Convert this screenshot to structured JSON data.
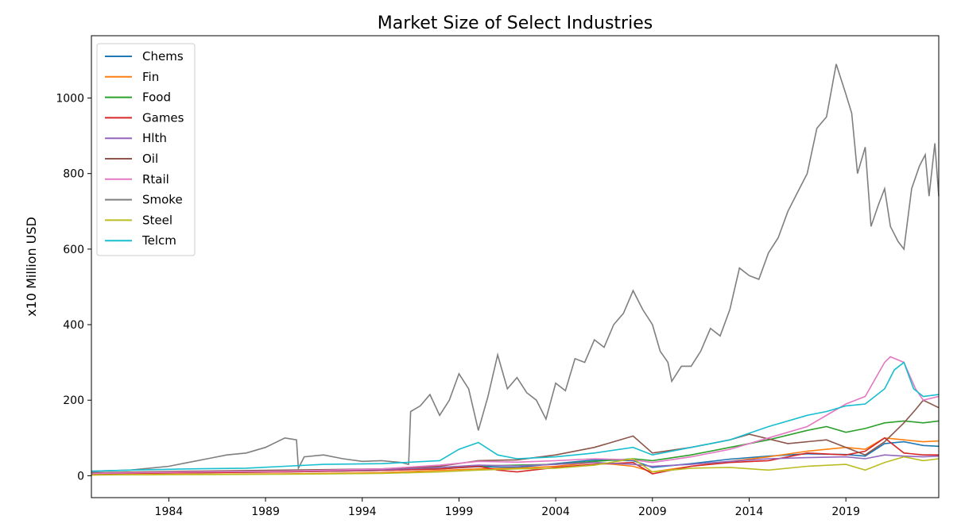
{
  "chart_data": {
    "type": "line",
    "title": "Market Size of Select Industries",
    "xlabel": "",
    "ylabel": "x10 Million USD",
    "xlim": [
      1980.0,
      2023.8
    ],
    "ylim": [
      -58,
      1165
    ],
    "x_ticks": [
      1984,
      1989,
      1994,
      1999,
      2004,
      2009,
      2014,
      2019
    ],
    "y_ticks": [
      0,
      200,
      400,
      600,
      800,
      1000
    ],
    "grid": false,
    "legend_position": "top-left",
    "series": [
      {
        "name": "Chems",
        "color": "#1f77b4",
        "points": [
          [
            1980.0,
            8
          ],
          [
            1985,
            10
          ],
          [
            1990,
            11
          ],
          [
            1995,
            14
          ],
          [
            1998,
            18
          ],
          [
            2000,
            24
          ],
          [
            2002,
            22
          ],
          [
            2004,
            32
          ],
          [
            2006,
            42
          ],
          [
            2008,
            40
          ],
          [
            2009,
            22
          ],
          [
            2011,
            32
          ],
          [
            2013,
            44
          ],
          [
            2015,
            52
          ],
          [
            2017,
            58
          ],
          [
            2019,
            56
          ],
          [
            2020,
            52
          ],
          [
            2021,
            85
          ],
          [
            2022,
            90
          ],
          [
            2023,
            80
          ],
          [
            2023.8,
            78
          ]
        ]
      },
      {
        "name": "Fin",
        "color": "#ff7f0e",
        "points": [
          [
            1980.0,
            2
          ],
          [
            1985,
            4
          ],
          [
            1990,
            5
          ],
          [
            1995,
            8
          ],
          [
            1998,
            14
          ],
          [
            2000,
            18
          ],
          [
            2002,
            20
          ],
          [
            2004,
            25
          ],
          [
            2006,
            35
          ],
          [
            2008,
            25
          ],
          [
            2009,
            10
          ],
          [
            2011,
            25
          ],
          [
            2013,
            38
          ],
          [
            2015,
            50
          ],
          [
            2017,
            65
          ],
          [
            2019,
            75
          ],
          [
            2020,
            70
          ],
          [
            2021,
            100
          ],
          [
            2022,
            95
          ],
          [
            2023,
            90
          ],
          [
            2023.8,
            92
          ]
        ]
      },
      {
        "name": "Food",
        "color": "#2ca02c",
        "points": [
          [
            1980.0,
            6
          ],
          [
            1985,
            8
          ],
          [
            1990,
            10
          ],
          [
            1995,
            14
          ],
          [
            1998,
            22
          ],
          [
            2000,
            26
          ],
          [
            2002,
            28
          ],
          [
            2004,
            30
          ],
          [
            2006,
            38
          ],
          [
            2008,
            45
          ],
          [
            2009,
            40
          ],
          [
            2011,
            55
          ],
          [
            2013,
            75
          ],
          [
            2015,
            95
          ],
          [
            2017,
            120
          ],
          [
            2018,
            130
          ],
          [
            2019,
            115
          ],
          [
            2020,
            125
          ],
          [
            2021,
            140
          ],
          [
            2022,
            145
          ],
          [
            2023,
            140
          ],
          [
            2023.8,
            145
          ]
        ]
      },
      {
        "name": "Games",
        "color": "#d62728",
        "points": [
          [
            1980.0,
            5
          ],
          [
            1985,
            8
          ],
          [
            1990,
            10
          ],
          [
            1995,
            14
          ],
          [
            1998,
            18
          ],
          [
            2000,
            25
          ],
          [
            2001,
            15
          ],
          [
            2002,
            10
          ],
          [
            2004,
            22
          ],
          [
            2006,
            30
          ],
          [
            2008,
            35
          ],
          [
            2009,
            5
          ],
          [
            2011,
            25
          ],
          [
            2013,
            35
          ],
          [
            2015,
            40
          ],
          [
            2017,
            60
          ],
          [
            2019,
            55
          ],
          [
            2020,
            65
          ],
          [
            2021,
            100
          ],
          [
            2022,
            60
          ],
          [
            2023,
            55
          ],
          [
            2023.8,
            55
          ]
        ]
      },
      {
        "name": "Hlth",
        "color": "#9467bd",
        "points": [
          [
            1980.0,
            8
          ],
          [
            1985,
            10
          ],
          [
            1990,
            12
          ],
          [
            1995,
            16
          ],
          [
            1998,
            22
          ],
          [
            2000,
            28
          ],
          [
            2002,
            26
          ],
          [
            2004,
            30
          ],
          [
            2006,
            35
          ],
          [
            2008,
            30
          ],
          [
            2009,
            25
          ],
          [
            2011,
            30
          ],
          [
            2013,
            38
          ],
          [
            2015,
            45
          ],
          [
            2017,
            48
          ],
          [
            2019,
            50
          ],
          [
            2020,
            45
          ],
          [
            2021,
            55
          ],
          [
            2022,
            52
          ],
          [
            2023,
            50
          ],
          [
            2023.8,
            52
          ]
        ]
      },
      {
        "name": "Oil",
        "color": "#8c564b",
        "points": [
          [
            1980.0,
            8
          ],
          [
            1985,
            12
          ],
          [
            1990,
            15
          ],
          [
            1995,
            18
          ],
          [
            1998,
            25
          ],
          [
            2000,
            40
          ],
          [
            2002,
            42
          ],
          [
            2004,
            55
          ],
          [
            2006,
            75
          ],
          [
            2008,
            105
          ],
          [
            2009,
            60
          ],
          [
            2011,
            75
          ],
          [
            2013,
            95
          ],
          [
            2014,
            110
          ],
          [
            2016,
            85
          ],
          [
            2018,
            95
          ],
          [
            2020,
            55
          ],
          [
            2021,
            90
          ],
          [
            2022,
            140
          ],
          [
            2022.6,
            175
          ],
          [
            2023,
            200
          ],
          [
            2023.8,
            180
          ]
        ]
      },
      {
        "name": "Rtail",
        "color": "#e377c2",
        "points": [
          [
            1980.0,
            6
          ],
          [
            1985,
            10
          ],
          [
            1990,
            12
          ],
          [
            1995,
            18
          ],
          [
            1998,
            28
          ],
          [
            2000,
            38
          ],
          [
            2002,
            36
          ],
          [
            2004,
            40
          ],
          [
            2006,
            45
          ],
          [
            2008,
            42
          ],
          [
            2009,
            35
          ],
          [
            2011,
            50
          ],
          [
            2013,
            70
          ],
          [
            2015,
            100
          ],
          [
            2017,
            130
          ],
          [
            2019,
            190
          ],
          [
            2020,
            210
          ],
          [
            2021,
            300
          ],
          [
            2021.3,
            315
          ],
          [
            2022,
            300
          ],
          [
            2022.6,
            230
          ],
          [
            2023,
            200
          ],
          [
            2023.8,
            210
          ]
        ]
      },
      {
        "name": "Smoke",
        "color": "#7f7f7f",
        "points": [
          [
            1980.0,
            12
          ],
          [
            1982,
            15
          ],
          [
            1983,
            20
          ],
          [
            1984,
            25
          ],
          [
            1985,
            35
          ],
          [
            1986,
            45
          ],
          [
            1987,
            55
          ],
          [
            1988,
            60
          ],
          [
            1989,
            75
          ],
          [
            1990,
            100
          ],
          [
            1990.6,
            95
          ],
          [
            1990.7,
            20
          ],
          [
            1991,
            50
          ],
          [
            1992,
            55
          ],
          [
            1993,
            45
          ],
          [
            1994,
            38
          ],
          [
            1995,
            40
          ],
          [
            1996,
            35
          ],
          [
            1996.4,
            30
          ],
          [
            1996.5,
            170
          ],
          [
            1997,
            185
          ],
          [
            1997.5,
            215
          ],
          [
            1998,
            160
          ],
          [
            1998.5,
            200
          ],
          [
            1999,
            270
          ],
          [
            1999.5,
            230
          ],
          [
            2000,
            120
          ],
          [
            2000.5,
            210
          ],
          [
            2001,
            320
          ],
          [
            2001.5,
            230
          ],
          [
            2002,
            260
          ],
          [
            2002.5,
            220
          ],
          [
            2003,
            200
          ],
          [
            2003.5,
            150
          ],
          [
            2004,
            245
          ],
          [
            2004.5,
            225
          ],
          [
            2005,
            310
          ],
          [
            2005.5,
            300
          ],
          [
            2006,
            360
          ],
          [
            2006.5,
            340
          ],
          [
            2007,
            400
          ],
          [
            2007.5,
            430
          ],
          [
            2008,
            490
          ],
          [
            2008.5,
            440
          ],
          [
            2009,
            400
          ],
          [
            2009.4,
            330
          ],
          [
            2009.8,
            300
          ],
          [
            2010,
            250
          ],
          [
            2010.5,
            290
          ],
          [
            2011,
            290
          ],
          [
            2011.5,
            330
          ],
          [
            2012,
            390
          ],
          [
            2012.5,
            370
          ],
          [
            2013,
            440
          ],
          [
            2013.5,
            550
          ],
          [
            2014,
            530
          ],
          [
            2014.5,
            520
          ],
          [
            2015,
            590
          ],
          [
            2015.5,
            630
          ],
          [
            2016,
            700
          ],
          [
            2016.5,
            750
          ],
          [
            2017,
            800
          ],
          [
            2017.5,
            920
          ],
          [
            2018,
            950
          ],
          [
            2018.5,
            1090
          ],
          [
            2019,
            1010
          ],
          [
            2019.3,
            960
          ],
          [
            2019.6,
            800
          ],
          [
            2020,
            870
          ],
          [
            2020.3,
            660
          ],
          [
            2020.7,
            720
          ],
          [
            2021,
            760
          ],
          [
            2021.3,
            660
          ],
          [
            2021.7,
            620
          ],
          [
            2022,
            600
          ],
          [
            2022.4,
            760
          ],
          [
            2022.8,
            820
          ],
          [
            2023.1,
            850
          ],
          [
            2023.3,
            740
          ],
          [
            2023.6,
            880
          ],
          [
            2023.8,
            740
          ]
        ]
      },
      {
        "name": "Steel",
        "color": "#bcbd22",
        "points": [
          [
            1980.0,
            2
          ],
          [
            1985,
            3
          ],
          [
            1990,
            4
          ],
          [
            1995,
            6
          ],
          [
            1998,
            10
          ],
          [
            2000,
            15
          ],
          [
            2002,
            18
          ],
          [
            2004,
            20
          ],
          [
            2006,
            28
          ],
          [
            2008,
            45
          ],
          [
            2009,
            10
          ],
          [
            2011,
            20
          ],
          [
            2013,
            22
          ],
          [
            2015,
            15
          ],
          [
            2017,
            25
          ],
          [
            2019,
            30
          ],
          [
            2020,
            15
          ],
          [
            2021,
            35
          ],
          [
            2022,
            50
          ],
          [
            2023,
            40
          ],
          [
            2023.8,
            45
          ]
        ]
      },
      {
        "name": "Telcm",
        "color": "#17becf",
        "points": [
          [
            1980.0,
            12
          ],
          [
            1982,
            15
          ],
          [
            1985,
            18
          ],
          [
            1988,
            20
          ],
          [
            1990,
            25
          ],
          [
            1992,
            30
          ],
          [
            1995,
            32
          ],
          [
            1998,
            40
          ],
          [
            1999,
            70
          ],
          [
            2000,
            88
          ],
          [
            2001,
            55
          ],
          [
            2002,
            45
          ],
          [
            2004,
            50
          ],
          [
            2006,
            60
          ],
          [
            2008,
            75
          ],
          [
            2009,
            55
          ],
          [
            2011,
            75
          ],
          [
            2013,
            95
          ],
          [
            2015,
            130
          ],
          [
            2017,
            160
          ],
          [
            2018,
            170
          ],
          [
            2019,
            185
          ],
          [
            2020,
            190
          ],
          [
            2021,
            230
          ],
          [
            2021.5,
            280
          ],
          [
            2022,
            300
          ],
          [
            2022.5,
            230
          ],
          [
            2023,
            210
          ],
          [
            2023.8,
            215
          ]
        ]
      }
    ]
  }
}
